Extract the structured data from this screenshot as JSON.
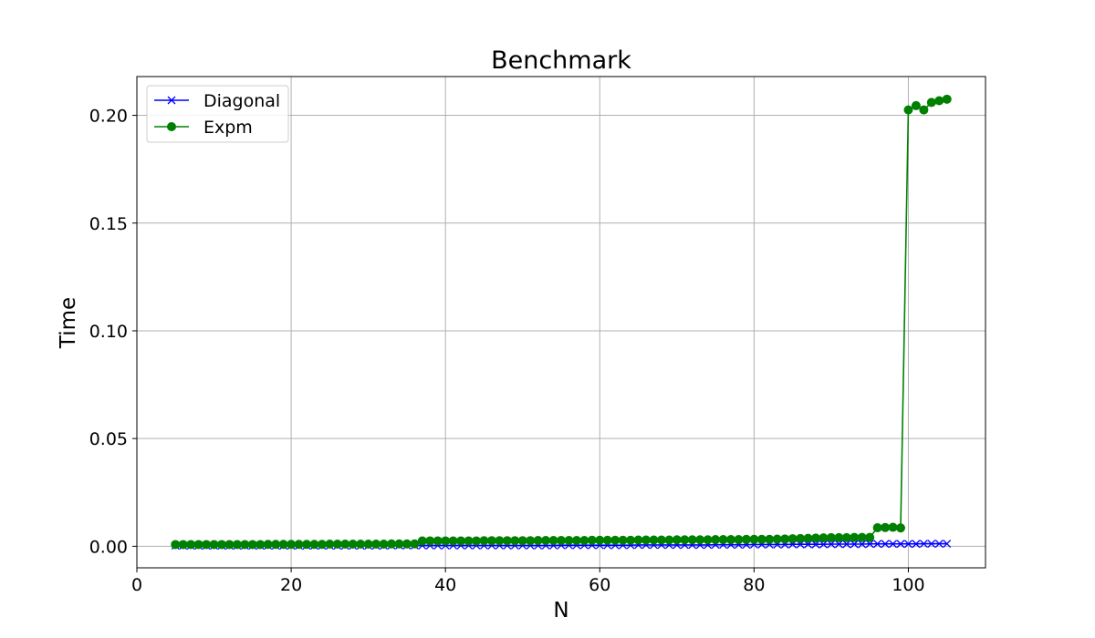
{
  "chart_data": {
    "type": "line",
    "title": "Benchmark",
    "xlabel": "N",
    "ylabel": "Time",
    "xlim": [
      0,
      110
    ],
    "ylim": [
      -0.01,
      0.218
    ],
    "xticks": [
      0,
      20,
      40,
      60,
      80,
      100
    ],
    "xtick_labels": [
      "0",
      "20",
      "40",
      "60",
      "80",
      "100"
    ],
    "yticks": [
      0.0,
      0.05,
      0.1,
      0.15,
      0.2
    ],
    "ytick_labels": [
      "0.00",
      "0.05",
      "0.10",
      "0.15",
      "0.20"
    ],
    "grid": true,
    "legend_position": "top-left",
    "x": [
      5,
      6,
      7,
      8,
      9,
      10,
      11,
      12,
      13,
      14,
      15,
      16,
      17,
      18,
      19,
      20,
      21,
      22,
      23,
      24,
      25,
      26,
      27,
      28,
      29,
      30,
      31,
      32,
      33,
      34,
      35,
      36,
      37,
      38,
      39,
      40,
      41,
      42,
      43,
      44,
      45,
      46,
      47,
      48,
      49,
      50,
      51,
      52,
      53,
      54,
      55,
      56,
      57,
      58,
      59,
      60,
      61,
      62,
      63,
      64,
      65,
      66,
      67,
      68,
      69,
      70,
      71,
      72,
      73,
      74,
      75,
      76,
      77,
      78,
      79,
      80,
      81,
      82,
      83,
      84,
      85,
      86,
      87,
      88,
      89,
      90,
      91,
      92,
      93,
      94,
      95,
      96,
      97,
      98,
      99,
      100,
      101,
      102,
      103,
      104,
      105
    ],
    "series": [
      {
        "name": "Diagonal",
        "color": "#0000ff",
        "marker": "x",
        "values": [
          0.0003,
          0.0003,
          0.0003,
          0.0003,
          0.0003,
          0.0003,
          0.0003,
          0.0003,
          0.0003,
          0.0003,
          0.0003,
          0.0003,
          0.0003,
          0.0003,
          0.0003,
          0.0003,
          0.0003,
          0.0003,
          0.0003,
          0.0003,
          0.0003,
          0.0003,
          0.0003,
          0.0003,
          0.0003,
          0.0003,
          0.0003,
          0.0003,
          0.0004,
          0.0004,
          0.0004,
          0.0004,
          0.0004,
          0.0004,
          0.0004,
          0.0004,
          0.0004,
          0.0004,
          0.0004,
          0.0004,
          0.0004,
          0.0004,
          0.0004,
          0.0004,
          0.0004,
          0.0004,
          0.0004,
          0.0004,
          0.0004,
          0.0004,
          0.0005,
          0.0005,
          0.0005,
          0.0005,
          0.0005,
          0.0005,
          0.0005,
          0.0005,
          0.0005,
          0.0005,
          0.0006,
          0.0006,
          0.0006,
          0.0006,
          0.0006,
          0.0006,
          0.0006,
          0.0006,
          0.0006,
          0.0006,
          0.0007,
          0.0007,
          0.0007,
          0.0007,
          0.0007,
          0.0008,
          0.0008,
          0.0008,
          0.0008,
          0.0008,
          0.0009,
          0.0009,
          0.0009,
          0.0009,
          0.0009,
          0.001,
          0.001,
          0.001,
          0.001,
          0.001,
          0.0011,
          0.0011,
          0.0011,
          0.0011,
          0.0011,
          0.0011,
          0.0011,
          0.0012,
          0.0012,
          0.0012,
          0.0012
        ]
      },
      {
        "name": "Expm",
        "color": "#008000",
        "marker": "o",
        "values": [
          0.0008,
          0.0008,
          0.0008,
          0.0008,
          0.0008,
          0.0008,
          0.0008,
          0.0008,
          0.0008,
          0.0008,
          0.0008,
          0.0008,
          0.0009,
          0.0009,
          0.0009,
          0.0009,
          0.0009,
          0.0009,
          0.0009,
          0.0009,
          0.001,
          0.001,
          0.001,
          0.001,
          0.001,
          0.001,
          0.001,
          0.001,
          0.0011,
          0.0011,
          0.0011,
          0.0011,
          0.0025,
          0.0025,
          0.0025,
          0.0025,
          0.0025,
          0.0025,
          0.0025,
          0.0025,
          0.0026,
          0.0026,
          0.0026,
          0.0026,
          0.0026,
          0.0026,
          0.0026,
          0.0027,
          0.0027,
          0.0027,
          0.0027,
          0.0027,
          0.0027,
          0.0027,
          0.0028,
          0.0028,
          0.0028,
          0.0028,
          0.0028,
          0.0028,
          0.0029,
          0.0029,
          0.0029,
          0.0029,
          0.0029,
          0.003,
          0.003,
          0.003,
          0.003,
          0.003,
          0.0031,
          0.0031,
          0.0031,
          0.0031,
          0.0032,
          0.0032,
          0.0032,
          0.0032,
          0.0033,
          0.0034,
          0.0035,
          0.0036,
          0.0037,
          0.0038,
          0.0039,
          0.004,
          0.004,
          0.004,
          0.0041,
          0.0041,
          0.0041,
          0.0086,
          0.0087,
          0.0088,
          0.0085,
          0.2025,
          0.2045,
          0.2025,
          0.206,
          0.2068,
          0.2075
        ]
      }
    ]
  }
}
